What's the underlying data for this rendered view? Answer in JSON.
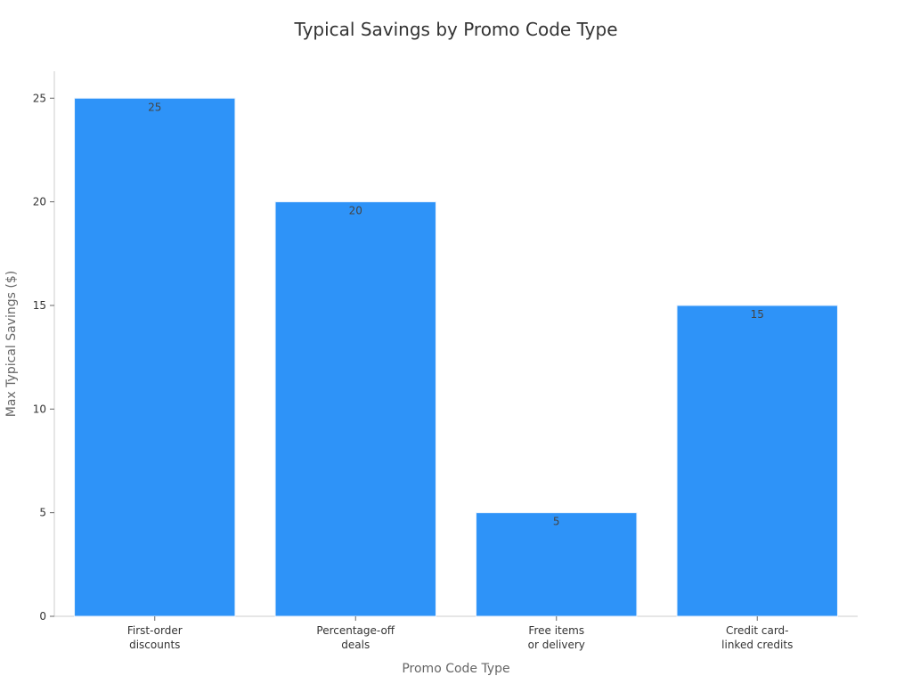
{
  "chart_data": {
    "type": "bar",
    "title": "Typical Savings by Promo Code Type",
    "xlabel": "Promo Code Type",
    "ylabel": "Max Typical Savings ($)",
    "categories": [
      [
        "First-order",
        "discounts"
      ],
      [
        "Percentage-off",
        "deals"
      ],
      [
        "Free items",
        "or delivery"
      ],
      [
        "Credit card-",
        "linked credits"
      ]
    ],
    "values": [
      25,
      20,
      5,
      15
    ],
    "data_labels": [
      "25",
      "20",
      "5",
      "15"
    ],
    "ylim": [
      0,
      26.3
    ],
    "yticks": [
      0,
      5,
      10,
      15,
      20,
      25
    ],
    "ytick_labels": [
      "0",
      "5",
      "10",
      "15",
      "20",
      "25"
    ],
    "grid": false,
    "legend": "none",
    "bar_color": "#2e93f8"
  }
}
